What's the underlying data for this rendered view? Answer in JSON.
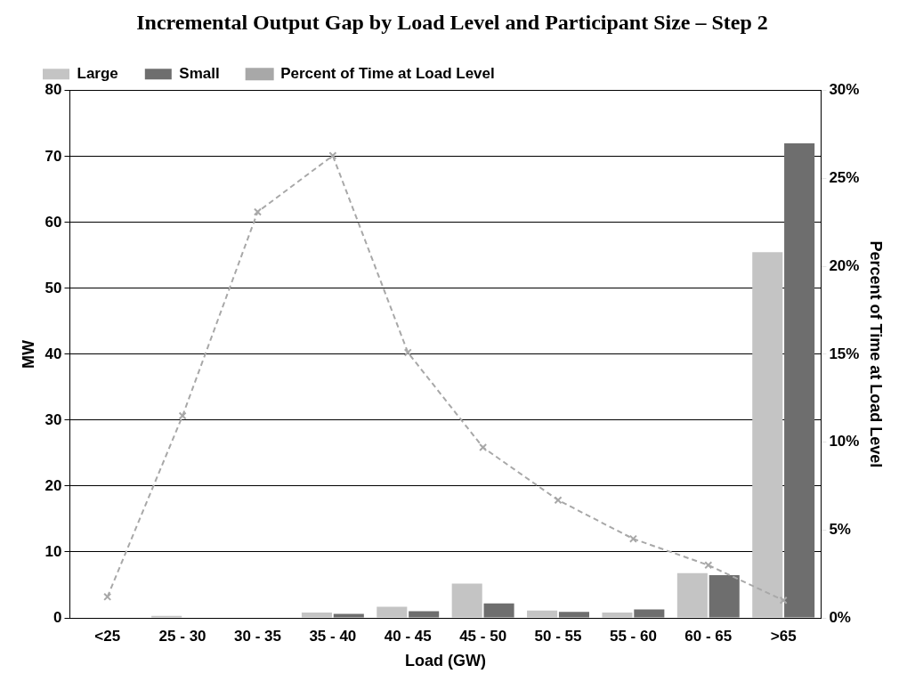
{
  "chart_data": {
    "type": "bar",
    "title": "Incremental Output Gap by Load Level and Participant Size – Step 2",
    "xlabel": "Load (GW)",
    "ylabel": "MW",
    "y2label": "Percent of Time at Load Level",
    "categories": [
      "<25",
      "25 - 30",
      "30 - 35",
      "35 - 40",
      "40 - 45",
      "45 - 50",
      "50 - 55",
      "55 - 60",
      "60 - 65",
      ">65"
    ],
    "series": [
      {
        "name": "Large",
        "color": "#c4c4c4",
        "values": [
          null,
          0.3,
          null,
          0.8,
          1.7,
          5.2,
          1.1,
          0.8,
          6.8,
          55.5
        ]
      },
      {
        "name": "Small",
        "color": "#6e6e6e",
        "values": [
          null,
          null,
          null,
          0.6,
          1.0,
          2.2,
          0.9,
          1.3,
          6.5,
          72
        ]
      },
      {
        "name": "Percent of Time at Load Level",
        "type": "line",
        "axis": "y2",
        "color": "#a8a8a8",
        "marker": "cross",
        "line_style": "dashed",
        "values": [
          1.2,
          11.5,
          23.1,
          26.3,
          15.1,
          9.7,
          6.7,
          4.5,
          3.0,
          1.0
        ]
      }
    ],
    "ylim": [
      0,
      80
    ],
    "yticks": [
      0,
      10,
      20,
      30,
      40,
      50,
      60,
      70,
      80
    ],
    "y2lim": [
      0,
      30
    ],
    "y2ticks": [
      {
        "value": 0,
        "label": "0%"
      },
      {
        "value": 5,
        "label": "5%"
      },
      {
        "value": 10,
        "label": "10%"
      },
      {
        "value": 15,
        "label": "15%"
      },
      {
        "value": 20,
        "label": "20%"
      },
      {
        "value": 25,
        "label": "25%"
      },
      {
        "value": 30,
        "label": "30%"
      }
    ],
    "grid": "y",
    "legend": "top left"
  }
}
